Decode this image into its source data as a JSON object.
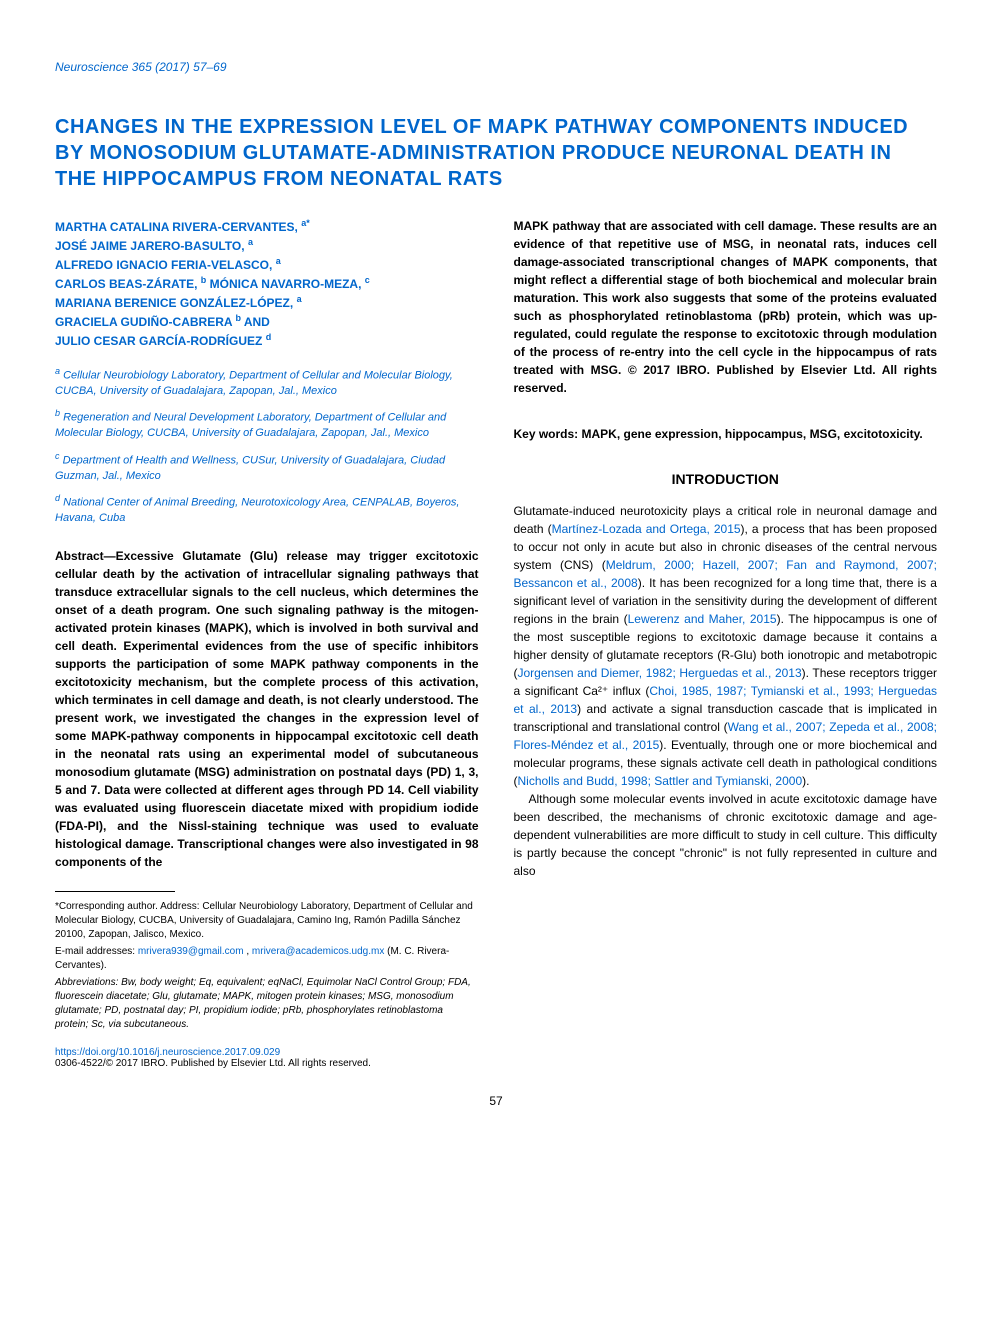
{
  "journal": {
    "name": "Neuroscience",
    "volume": "365",
    "year": "2017",
    "pages": "57–69"
  },
  "title": "CHANGES IN THE EXPRESSION LEVEL OF MAPK PATHWAY COMPONENTS INDUCED BY MONOSODIUM GLUTAMATE-ADMINISTRATION PRODUCE NEURONAL DEATH IN THE HIPPOCAMPUS FROM NEONATAL RATS",
  "authors": [
    {
      "name": "MARTHA CATALINA RIVERA-CERVANTES,",
      "aff": "a*"
    },
    {
      "name": "JOSÉ JAIME JARERO-BASULTO,",
      "aff": "a"
    },
    {
      "name": "ALFREDO IGNACIO FERIA-VELASCO,",
      "aff": "a"
    },
    {
      "name": "CARLOS BEAS-ZÁRATE,",
      "aff": "b"
    },
    {
      "name": "MÓNICA NAVARRO-MEZA,",
      "aff": "c"
    },
    {
      "name": "MARIANA BERENICE GONZÁLEZ-LÓPEZ,",
      "aff": "a"
    },
    {
      "name": "GRACIELA GUDIÑO-CABRERA",
      "aff": "b"
    },
    {
      "name": "AND",
      "aff": ""
    },
    {
      "name": "JULIO CESAR GARCÍA-RODRÍGUEZ",
      "aff": "d"
    }
  ],
  "affiliations": [
    {
      "sup": "a",
      "text": "Cellular Neurobiology Laboratory, Department of Cellular and Molecular Biology, CUCBA, University of Guadalajara, Zapopan, Jal., Mexico"
    },
    {
      "sup": "b",
      "text": "Regeneration and Neural Development Laboratory, Department of Cellular and Molecular Biology, CUCBA, University of Guadalajara, Zapopan, Jal., Mexico"
    },
    {
      "sup": "c",
      "text": "Department of Health and Wellness, CUSur, University of Guadalajara, Ciudad Guzman, Jal., Mexico"
    },
    {
      "sup": "d",
      "text": "National Center of Animal Breeding, Neurotoxicology Area, CENPALAB, Boyeros, Havana, Cuba"
    }
  ],
  "abstract_left": "Abstract—Excessive Glutamate (Glu) release may trigger excitotoxic cellular death by the activation of intracellular signaling pathways that transduce extracellular signals to the cell nucleus, which determines the onset of a death program. One such signaling pathway is the mitogen-activated protein kinases (MAPK), which is involved in both survival and cell death. Experimental evidences from the use of specific inhibitors supports the participation of some MAPK pathway components in the excitotoxicity mechanism, but the complete process of this activation, which terminates in cell damage and death, is not clearly understood. The present work, we investigated the changes in the expression level of some MAPK-pathway components in hippocampal excitotoxic cell death in the neonatal rats using an experimental model of subcutaneous monosodium glutamate (MSG) administration on postnatal days (PD) 1, 3, 5 and 7. Data were collected at different ages through PD 14. Cell viability was evaluated using fluorescein diacetate mixed with propidium iodide (FDA-PI), and the Nissl-staining technique was used to evaluate histological damage. Transcriptional changes were also investigated in 98 components of the",
  "abstract_right": "MAPK pathway that are associated with cell damage. These results are an evidence of that repetitive use of MSG, in neonatal rats, induces cell damage-associated transcriptional changes of MAPK components, that might reflect a differential stage of both biochemical and molecular brain maturation. This work also suggests that some of the proteins evaluated such as phosphorylated retinoblastoma (pRb) protein, which was up-regulated, could regulate the response to excitotoxic through modulation of the process of re-entry into the cell cycle in the hippocampus of rats treated with MSG. © 2017 IBRO. Published by Elsevier Ltd. All rights reserved.",
  "keywords": "Key words: MAPK, gene expression, hippocampus, MSG, excitotoxicity.",
  "introduction_heading": "INTRODUCTION",
  "intro_p1_a": "Glutamate-induced neurotoxicity plays a critical role in neuronal damage and death (",
  "intro_p1_ref1": "Martínez-Lozada and Ortega, 2015",
  "intro_p1_b": "), a process that has been proposed to occur not only in acute but also in chronic diseases of the central nervous system (CNS) (",
  "intro_p1_ref2": "Meldrum, 2000; Hazell, 2007; Fan and Raymond, 2007; Bessancon et al., 2008",
  "intro_p1_c": "). It has been recognized for a long time that, there is a significant level of variation in the sensitivity during the development of different regions in the brain (",
  "intro_p1_ref3": "Lewerenz and Maher, 2015",
  "intro_p1_d": "). The hippocampus is one of the most susceptible regions to excitotoxic damage because it contains a higher density of glutamate receptors (R-Glu) both ionotropic and metabotropic (",
  "intro_p1_ref4": "Jorgensen and Diemer, 1982; Herguedas et al., 2013",
  "intro_p1_e": "). These receptors trigger a significant Ca²⁺ influx (",
  "intro_p1_ref5": "Choi, 1985, 1987; Tymianski et al., 1993; Herguedas et al., 2013",
  "intro_p1_f": ") and activate a signal transduction cascade that is implicated in transcriptional and translational control (",
  "intro_p1_ref6": "Wang et al., 2007; Zepeda et al., 2008; Flores-Méndez et al., 2015",
  "intro_p1_g": "). Eventually, through one or more biochemical and molecular programs, these signals activate cell death in pathological conditions (",
  "intro_p1_ref7": "Nicholls and Budd, 1998; Sattler and Tymianski, 2000",
  "intro_p1_h": ").",
  "intro_p2": "Although some molecular events involved in acute excitotoxic damage have been described, the mechanisms of chronic excitotoxic damage and age-dependent vulnerabilities are more difficult to study in cell culture. This difficulty is partly because the concept \"chronic\" is not fully represented in culture and also",
  "footnotes": {
    "corresponding": "*Corresponding author. Address: Cellular Neurobiology Laboratory, Department of Cellular and Molecular Biology, CUCBA, University of Guadalajara, Camino Ing, Ramón Padilla Sánchez 20100, Zapopan, Jalisco, Mexico.",
    "email_label": "E-mail addresses: ",
    "email1": "mrivera939@gmail.com",
    "email_sep": ", ",
    "email2": "mrivera@academicos.udg.mx",
    "email_author": " (M. C. Rivera-Cervantes).",
    "abbreviations": "Abbreviations: Bw, body weight; Eq, equivalent; eqNaCl, Equimolar NaCl Control Group; FDA, fluorescein diacetate; Glu, glutamate; MAPK, mitogen protein kinases; MSG, monosodium glutamate; PD, postnatal day; PI, propidium iodide; pRb, phosphorylates retinoblastoma protein; Sc, via subcutaneous."
  },
  "doi": {
    "url": "https://doi.org/10.1016/j.neuroscience.2017.09.029",
    "issn": "0306-4522/© 2017 IBRO. Published by Elsevier Ltd. All rights reserved."
  },
  "page_number": "57",
  "colors": {
    "link_color": "#0066cc",
    "text_color": "#000000",
    "background": "#ffffff"
  },
  "fonts": {
    "body_size": "12px",
    "title_size": "20px",
    "footnote_size": "10px"
  }
}
